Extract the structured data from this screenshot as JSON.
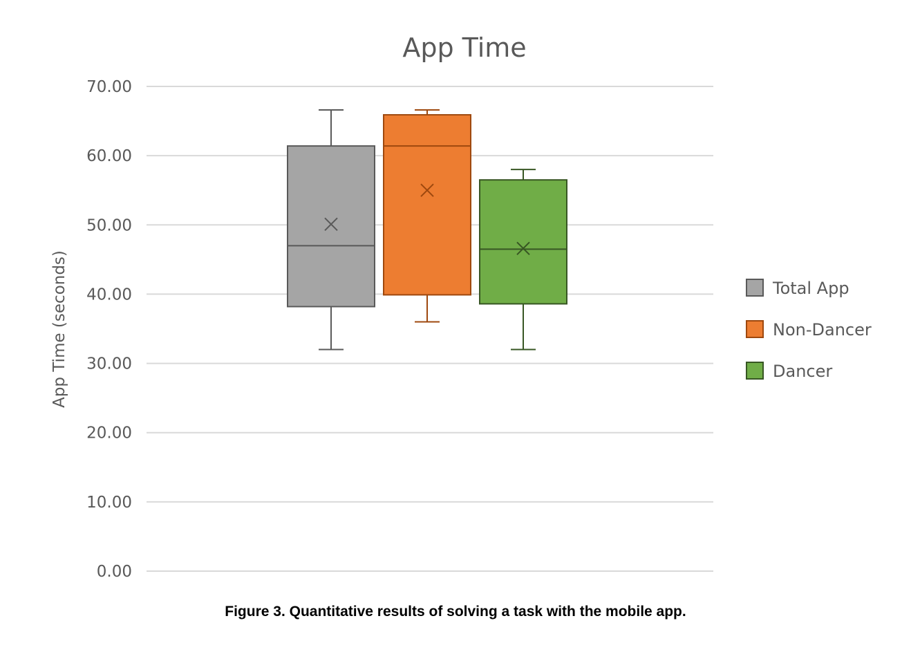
{
  "caption": "Figure 3. Quantitative results of solving a task with the mobile app.",
  "chart_data": {
    "type": "box",
    "title": "App Time",
    "xlabel": "",
    "ylabel": "App Time (seconds)",
    "ylim": [
      0,
      70
    ],
    "yticks": [
      "0.00",
      "10.00",
      "20.00",
      "30.00",
      "40.00",
      "50.00",
      "60.00",
      "70.00"
    ],
    "grid": true,
    "legend_position": "right",
    "series": [
      {
        "name": "Total App",
        "min": 32.0,
        "q1": 38.2,
        "median": 47.0,
        "q3": 61.4,
        "max": 66.6,
        "mean": 50.1,
        "fill": "#a5a5a5",
        "stroke": "#595959"
      },
      {
        "name": "Non-Dancer",
        "min": 36.0,
        "q1": 39.9,
        "median": 61.4,
        "q3": 65.9,
        "max": 66.6,
        "mean": 55.0,
        "fill": "#ed7d31",
        "stroke": "#9e480e"
      },
      {
        "name": "Dancer",
        "min": 32.0,
        "q1": 38.6,
        "median": 46.5,
        "q3": 56.5,
        "max": 58.0,
        "mean": 46.6,
        "fill": "#70ad47",
        "stroke": "#375623"
      }
    ]
  }
}
